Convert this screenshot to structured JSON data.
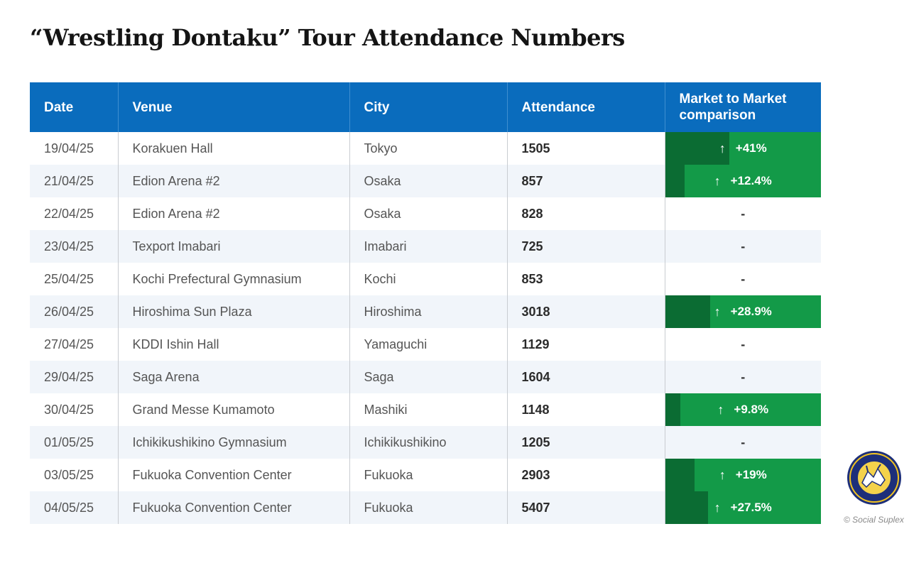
{
  "title": "“Wrestling Dontaku” Tour Attendance Numbers",
  "credit": "© Social Suplex",
  "logo": {
    "icon": "social-suplex-podcast-network-logo",
    "text_top": "SOCIAL SUPLEX",
    "text_bottom": "PODCAST NETWORK"
  },
  "colors": {
    "header_bg": "#0a6cbd",
    "positive_fill": "#139a48",
    "positive_bar": "#0b6c33",
    "row_alt": "#f1f5fa"
  },
  "chart_data": {
    "type": "table",
    "title": "“Wrestling Dontaku” Tour Attendance Numbers",
    "columns": [
      "Date",
      "Venue",
      "City",
      "Attendance",
      "Market to Market comparison"
    ],
    "rows": [
      {
        "date": "19/04/25",
        "venue": "Korakuen Hall",
        "city": "Tokyo",
        "attendance": "1505",
        "comparison": "+41%",
        "comparison_value": 41
      },
      {
        "date": "21/04/25",
        "venue": "Edion Arena #2",
        "city": "Osaka",
        "attendance": "857",
        "comparison": "+12.4%",
        "comparison_value": 12.4
      },
      {
        "date": "22/04/25",
        "venue": "Edion Arena #2",
        "city": "Osaka",
        "attendance": "828",
        "comparison": "-",
        "comparison_value": null
      },
      {
        "date": "23/04/25",
        "venue": "Texport Imabari",
        "city": "Imabari",
        "attendance": "725",
        "comparison": "-",
        "comparison_value": null
      },
      {
        "date": "25/04/25",
        "venue": "Kochi Prefectural Gymnasium",
        "city": "Kochi",
        "attendance": "853",
        "comparison": "-",
        "comparison_value": null
      },
      {
        "date": "26/04/25",
        "venue": "Hiroshima Sun Plaza",
        "city": "Hiroshima",
        "attendance": "3018",
        "comparison": "+28.9%",
        "comparison_value": 28.9
      },
      {
        "date": "27/04/25",
        "venue": "KDDI Ishin Hall",
        "city": "Yamaguchi",
        "attendance": "1129",
        "comparison": "-",
        "comparison_value": null
      },
      {
        "date": "29/04/25",
        "venue": "Saga Arena",
        "city": "Saga",
        "attendance": "1604",
        "comparison": "-",
        "comparison_value": null
      },
      {
        "date": "30/04/25",
        "venue": "Grand Messe Kumamoto",
        "city": "Mashiki",
        "attendance": "1148",
        "comparison": "+9.8%",
        "comparison_value": 9.8
      },
      {
        "date": "01/05/25",
        "venue": "Ichikikushikino Gymnasium",
        "city": "Ichikikushikino",
        "attendance": "1205",
        "comparison": "-",
        "comparison_value": null
      },
      {
        "date": "03/05/25",
        "venue": "Fukuoka Convention Center",
        "city": "Fukuoka",
        "attendance": "2903",
        "comparison": "+19%",
        "comparison_value": 19
      },
      {
        "date": "04/05/25",
        "venue": "Fukuoka Convention Center",
        "city": "Fukuoka",
        "attendance": "5407",
        "comparison": "+27.5%",
        "comparison_value": 27.5
      }
    ]
  }
}
